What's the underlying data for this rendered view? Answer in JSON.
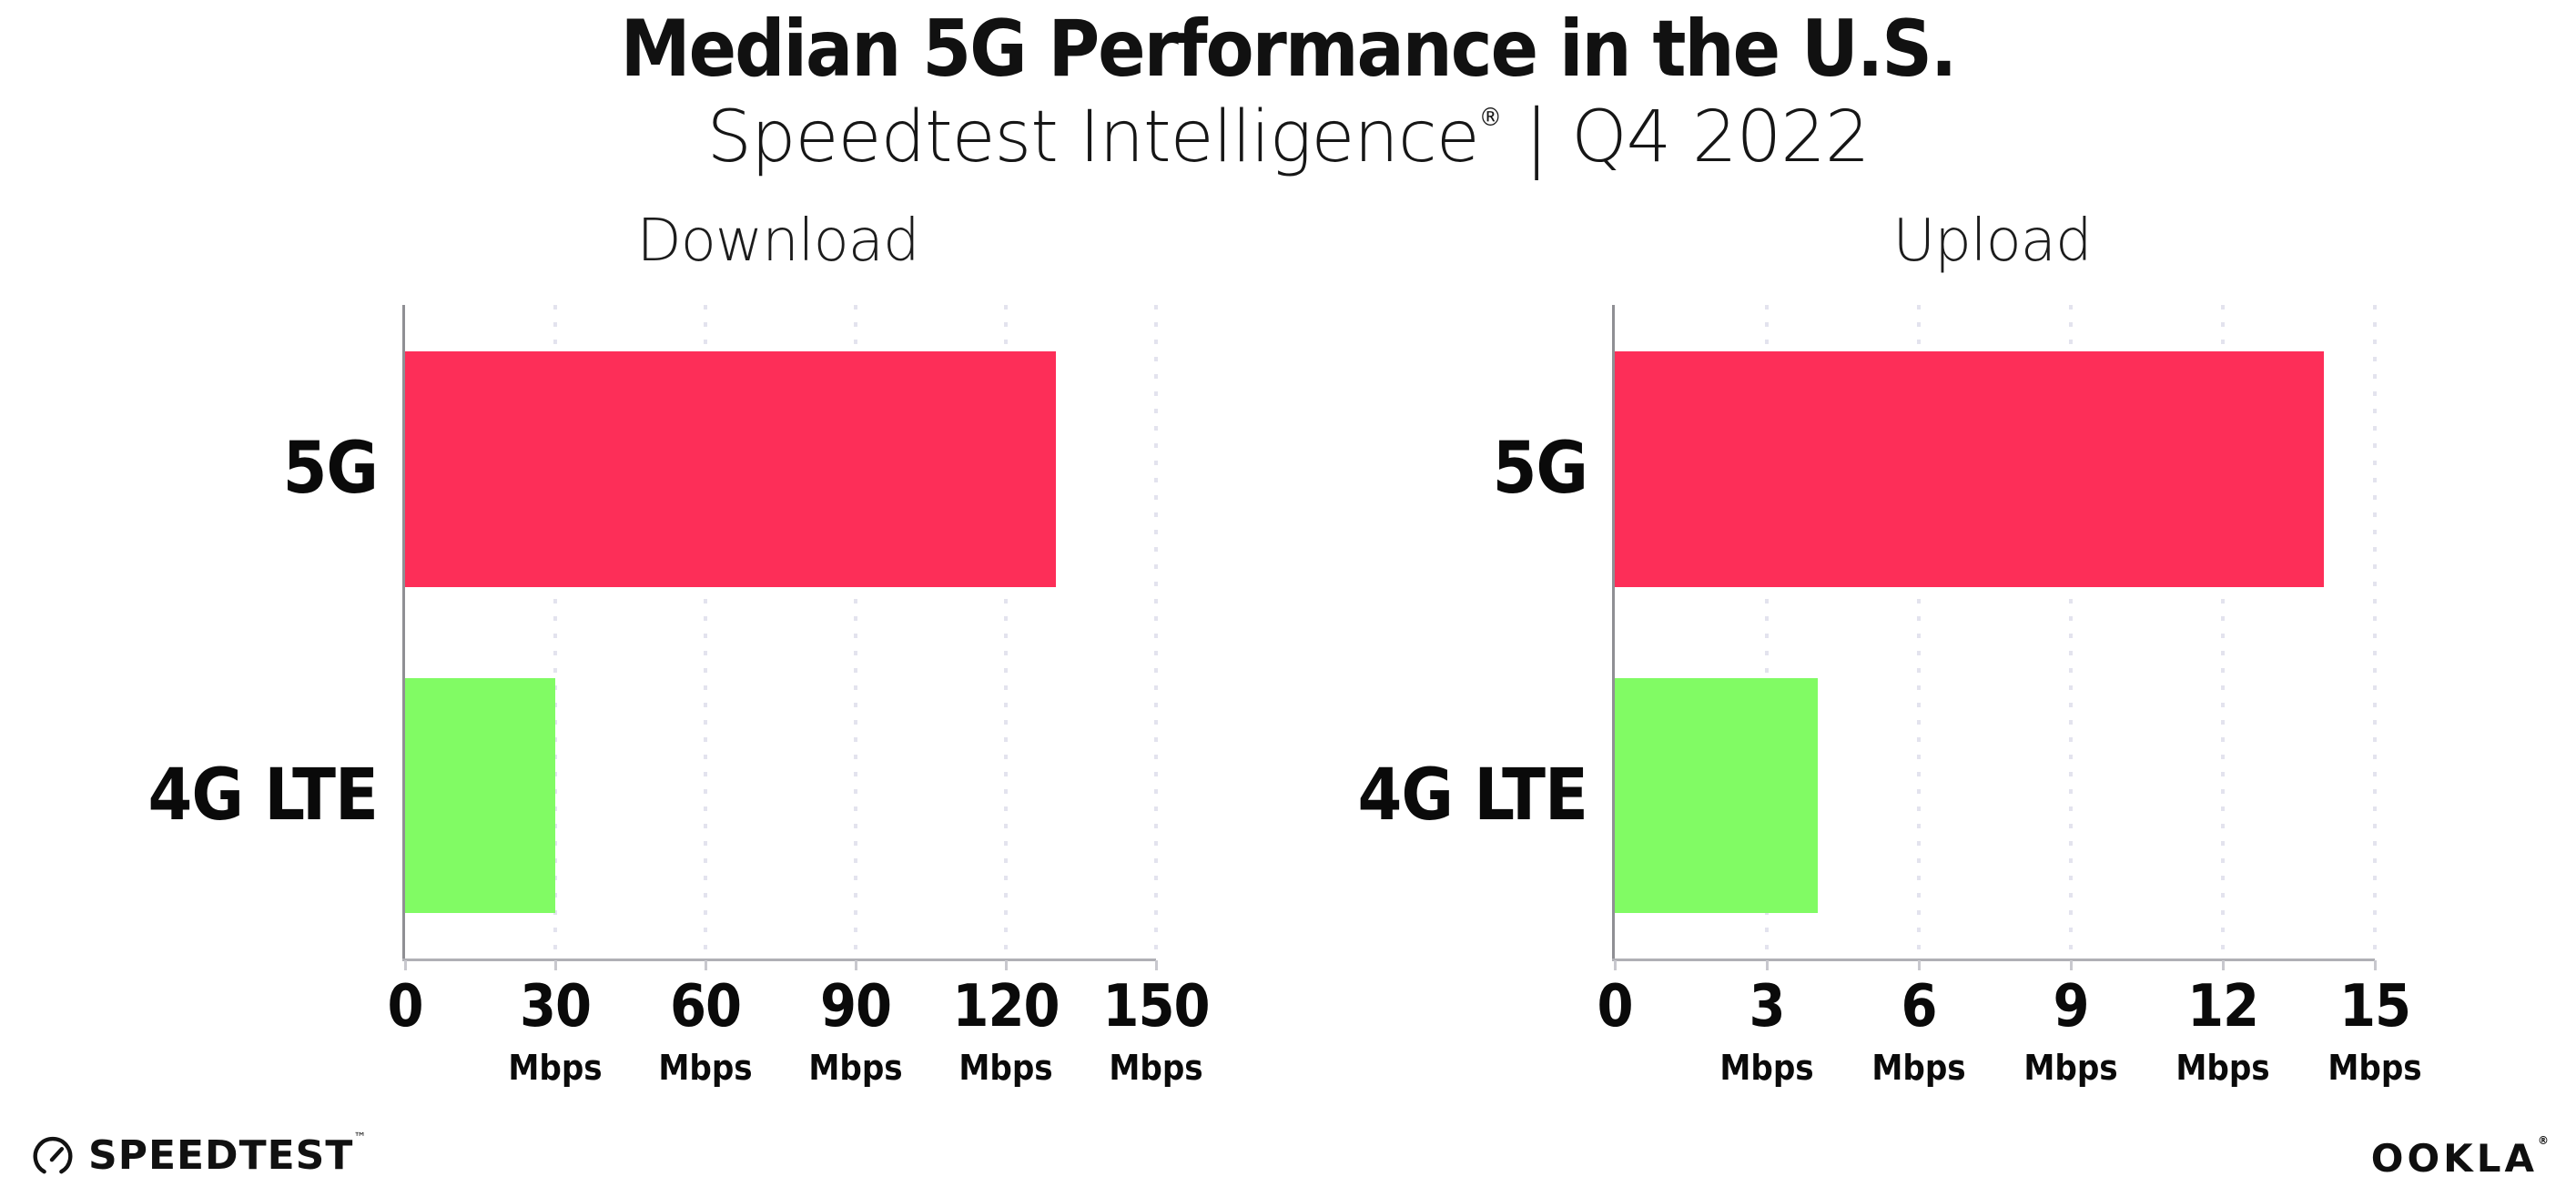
{
  "header": {
    "title": "Median 5G Performance in the U.S.",
    "subtitle_brand": "Speedtest Intelligence",
    "subtitle_reg": "®",
    "subtitle_divider": "|",
    "subtitle_period": "Q4 2022"
  },
  "chart_data": [
    {
      "type": "bar",
      "orientation": "horizontal",
      "title": "Download",
      "categories": [
        "5G",
        "4G LTE"
      ],
      "values": [
        130,
        30
      ],
      "unit": "Mbps",
      "xlim": [
        0,
        150
      ],
      "xticks": [
        0,
        30,
        60,
        90,
        120,
        150
      ],
      "series_colors": [
        "#FD2E58",
        "#81FB64"
      ],
      "grid": "dotted-vertical",
      "legend": "none"
    },
    {
      "type": "bar",
      "orientation": "horizontal",
      "title": "Upload",
      "categories": [
        "5G",
        "4G LTE"
      ],
      "values": [
        14,
        4
      ],
      "unit": "Mbps",
      "xlim": [
        0,
        15
      ],
      "xticks": [
        0,
        3,
        6,
        9,
        12,
        15
      ],
      "series_colors": [
        "#FD2E58",
        "#81FB64"
      ],
      "grid": "dotted-vertical",
      "legend": "none"
    }
  ],
  "colors": {
    "bar_5g": "#FD2E58",
    "bar_4g_lte": "#81FB64",
    "axis": "#b0b0b5",
    "y_axis": "#8f8f94",
    "gridline": "#e3e3ee",
    "text": "#111111"
  },
  "footer": {
    "speedtest_label": "SPEEDTEST",
    "speedtest_tm": "™",
    "speedtest_icon": "gauge-icon",
    "ookla_label": "OOKLA",
    "ookla_reg": "®"
  }
}
